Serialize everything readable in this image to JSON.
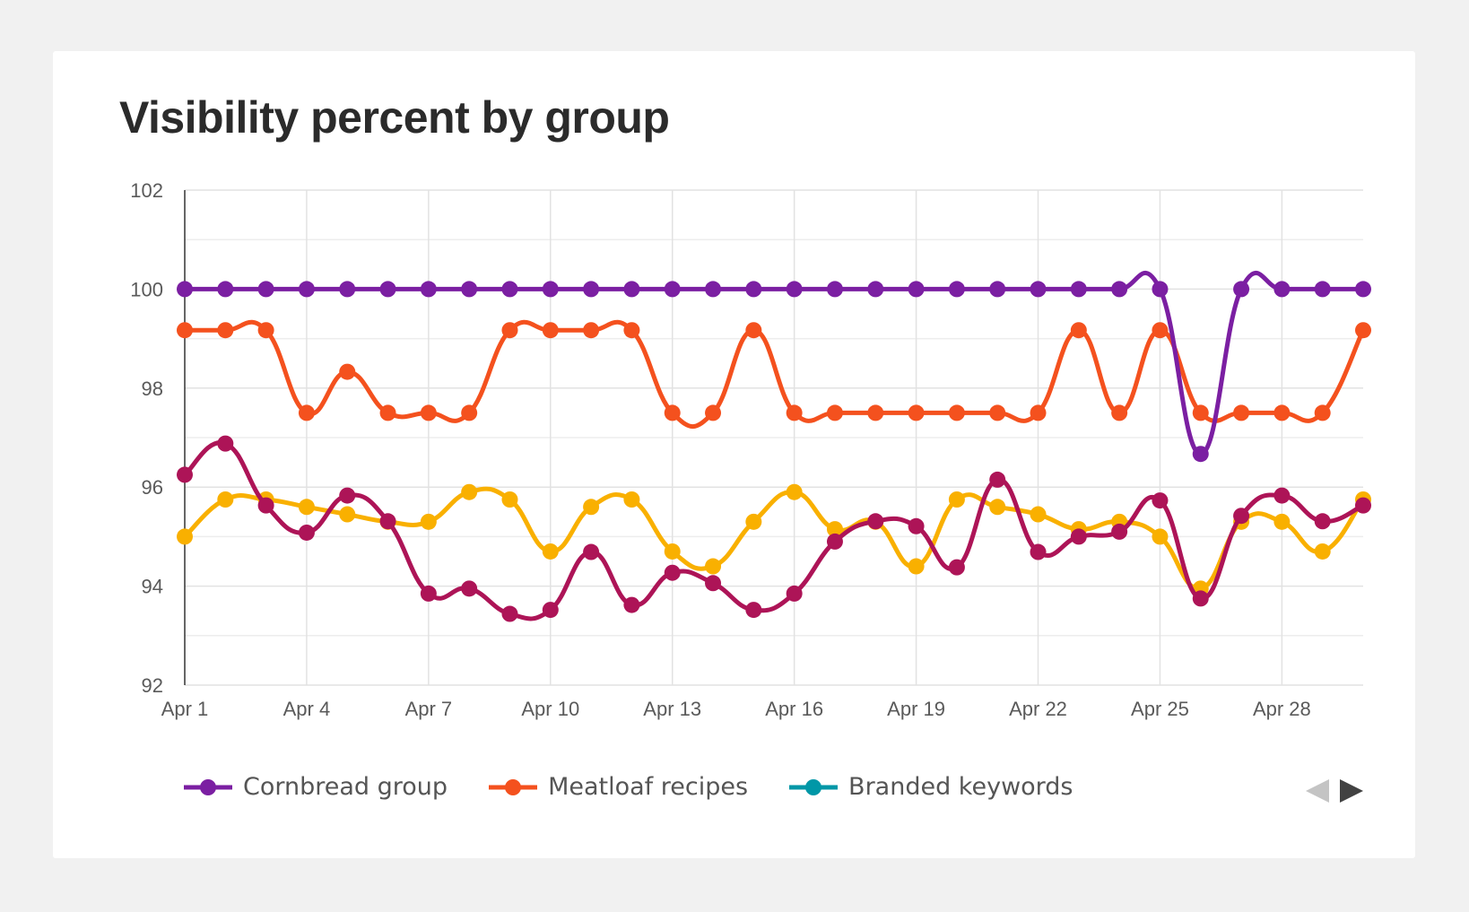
{
  "title": "Visibility percent by group",
  "legend": {
    "items": [
      {
        "label": "Cornbread group",
        "color": "#7b1fa2"
      },
      {
        "label": "Meatloaf recipes",
        "color": "#f4511e"
      },
      {
        "label": "Branded keywords",
        "color": "#0097a7"
      }
    ],
    "prev_icon": "triangle-left-icon",
    "next_icon": "triangle-right-icon",
    "prev_color": "#c4c4c4",
    "next_color": "#424242"
  },
  "chart_data": {
    "type": "line",
    "title": "Visibility percent by group",
    "xlabel": "",
    "ylabel": "",
    "x": [
      "Apr 1",
      "Apr 2",
      "Apr 3",
      "Apr 4",
      "Apr 5",
      "Apr 6",
      "Apr 7",
      "Apr 8",
      "Apr 9",
      "Apr 10",
      "Apr 11",
      "Apr 12",
      "Apr 13",
      "Apr 14",
      "Apr 15",
      "Apr 16",
      "Apr 17",
      "Apr 18",
      "Apr 19",
      "Apr 20",
      "Apr 21",
      "Apr 22",
      "Apr 23",
      "Apr 24",
      "Apr 25",
      "Apr 26",
      "Apr 27",
      "Apr 28",
      "Apr 29",
      "Apr 30"
    ],
    "x_tick_labels": [
      "Apr 1",
      "Apr 4",
      "Apr 7",
      "Apr 10",
      "Apr 13",
      "Apr 16",
      "Apr 19",
      "Apr 22",
      "Apr 25",
      "Apr 28"
    ],
    "ylim": [
      92,
      102
    ],
    "y_ticks": [
      92,
      94,
      96,
      98,
      100,
      102
    ],
    "grid": true,
    "legend_position": "bottom-left",
    "series": [
      {
        "name": "Cornbread group",
        "color": "#7b1fa2",
        "values": [
          100,
          100,
          100,
          100,
          100,
          100,
          100,
          100,
          100,
          100,
          100,
          100,
          100,
          100,
          100,
          100,
          100,
          100,
          100,
          100,
          100,
          100,
          100,
          100,
          100,
          96.67,
          100,
          100,
          100,
          100
        ]
      },
      {
        "name": "Meatloaf recipes",
        "color": "#f4511e",
        "values": [
          99.17,
          99.17,
          99.17,
          97.5,
          98.33,
          97.5,
          97.5,
          97.5,
          99.17,
          99.17,
          99.17,
          99.17,
          97.5,
          97.5,
          99.17,
          97.5,
          97.5,
          97.5,
          97.5,
          97.5,
          97.5,
          97.5,
          99.17,
          97.5,
          99.17,
          97.5,
          97.5,
          97.5,
          97.5,
          99.17
        ]
      },
      {
        "color": "#ad1457",
        "values": [
          96.25,
          96.88,
          95.63,
          95.08,
          95.83,
          95.31,
          93.85,
          93.95,
          93.44,
          93.52,
          94.69,
          93.62,
          94.27,
          94.06,
          93.52,
          93.85,
          94.9,
          95.31,
          95.21,
          94.38,
          96.15,
          94.69,
          95.0,
          95.1,
          95.73,
          93.75,
          95.42,
          95.83,
          95.31,
          95.63
        ]
      },
      {
        "color": "#f9b000",
        "values": [
          95.0,
          95.75,
          95.75,
          95.6,
          95.45,
          95.3,
          95.3,
          95.9,
          95.75,
          94.7,
          95.6,
          95.75,
          94.7,
          94.4,
          95.3,
          95.9,
          95.15,
          95.3,
          94.4,
          95.75,
          95.6,
          95.45,
          95.15,
          95.3,
          95.0,
          93.95,
          95.3,
          95.3,
          94.7,
          95.75
        ]
      }
    ]
  }
}
